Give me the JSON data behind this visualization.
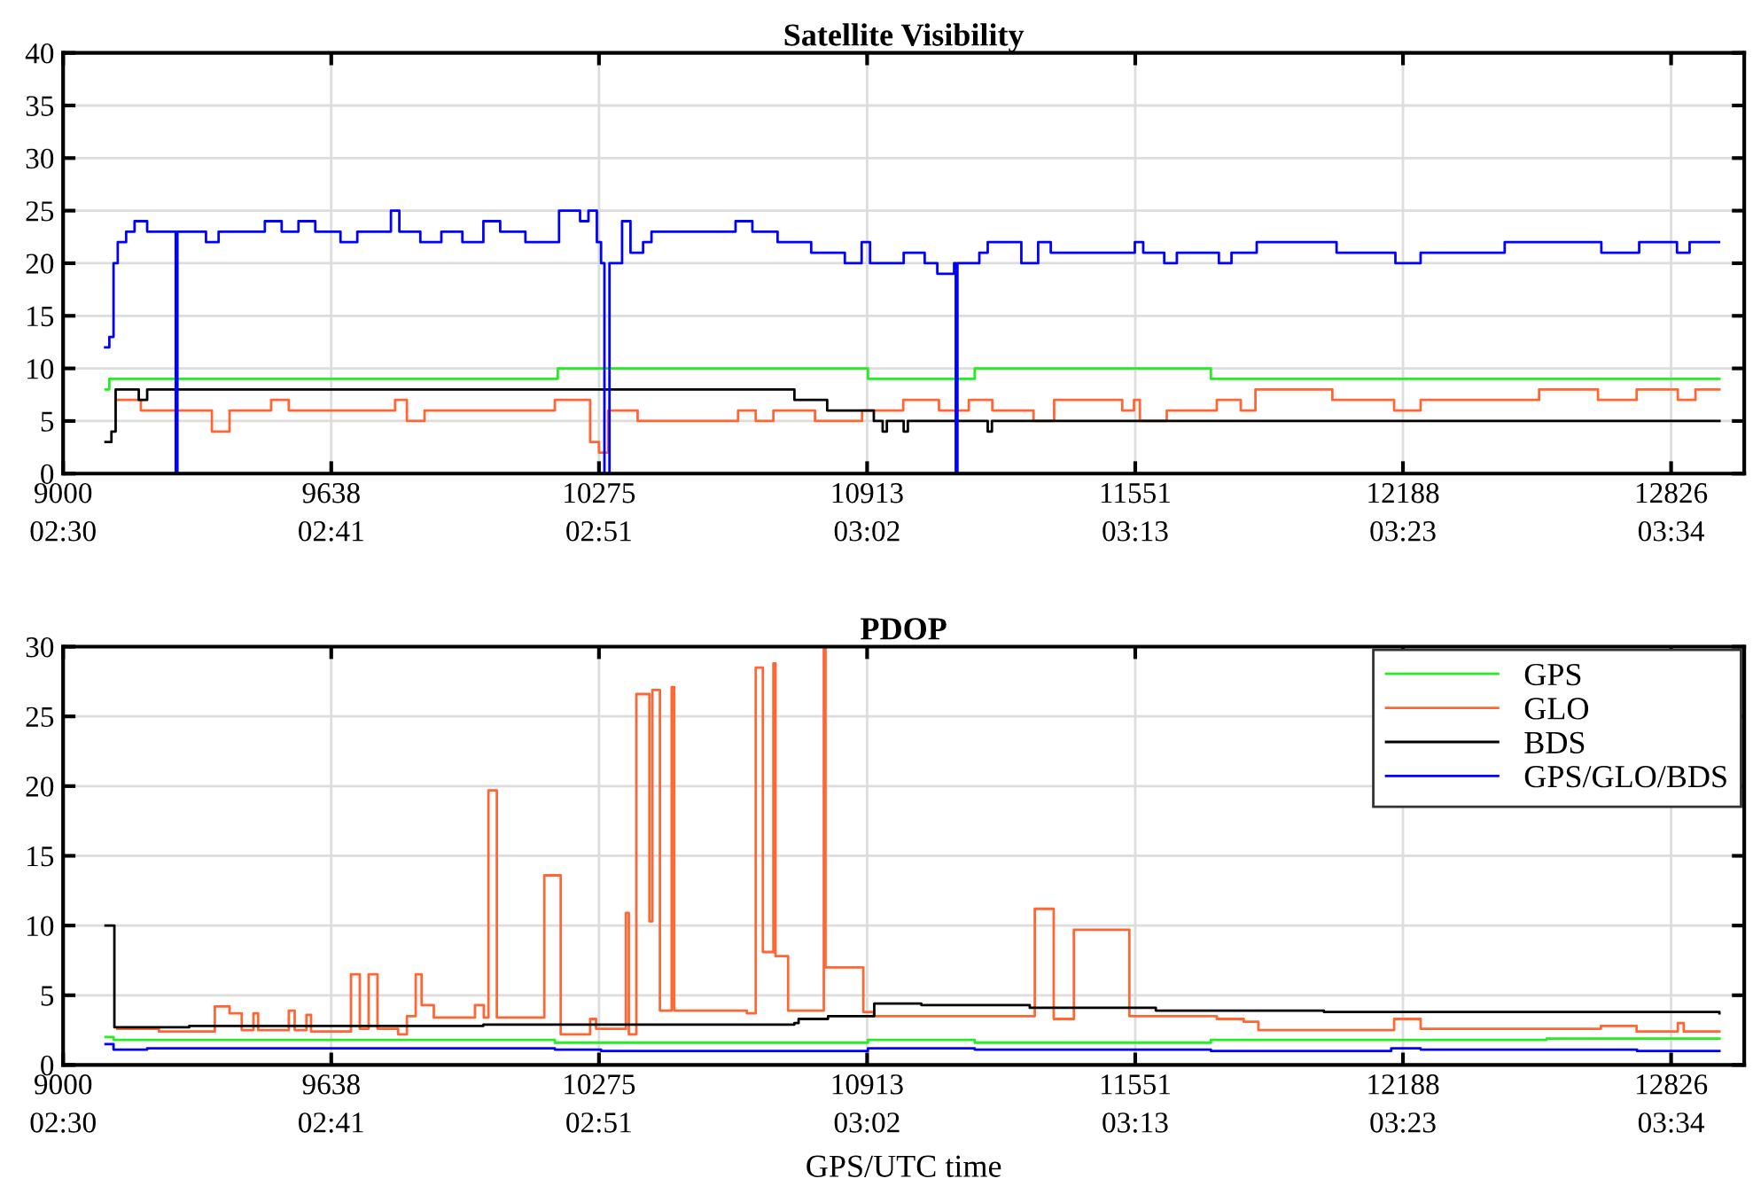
{
  "chart_data": [
    {
      "type": "step",
      "title": "Satellite Visibility",
      "xlim": [
        9000,
        13000
      ],
      "xticks": [
        9000,
        9638,
        10275,
        10913,
        11551,
        12188,
        12826
      ],
      "x2lim": [
        9000,
        13000
      ],
      "x2ticks": [
        {
          "value": 9000,
          "label": "02:30"
        },
        {
          "value": 9638,
          "label": "02:41"
        },
        {
          "value": 10275,
          "label": "02:51"
        },
        {
          "value": 10913,
          "label": "03:02"
        },
        {
          "value": 11551,
          "label": "03:13"
        },
        {
          "value": 12188,
          "label": "03:23"
        },
        {
          "value": 12826,
          "label": "03:34"
        }
      ],
      "ylim": [
        0,
        40
      ],
      "yticks": [
        0,
        5,
        10,
        15,
        20,
        25,
        30,
        35,
        40
      ],
      "grid": true,
      "legend": false,
      "series": [
        {
          "color": "#22ee22",
          "x": [
            9101,
            9110,
            10177,
            10915,
            11169,
            11731,
            12941
          ],
          "values": [
            8,
            9,
            10,
            9,
            10,
            9,
            9
          ]
        },
        {
          "color": "#ff6633",
          "x": [
            9129,
            9185,
            9354,
            9396,
            9495,
            9537,
            9790,
            9818,
            9860,
            10170,
            10254,
            10275,
            10297,
            10367,
            10606,
            10648,
            10690,
            10789,
            10901,
            10999,
            11084,
            11155,
            11211,
            11309,
            11358,
            11520,
            11548,
            11562,
            11626,
            11745,
            11802,
            11837,
            12020,
            12167,
            12230,
            12512,
            12652,
            12744,
            12842,
            12884,
            12941
          ],
          "values": [
            7,
            6,
            4,
            6,
            7,
            6,
            7,
            5,
            6,
            7,
            3,
            2,
            6,
            5,
            6,
            5,
            6,
            5,
            6,
            7,
            6,
            7,
            6,
            5,
            7,
            6,
            7,
            5,
            6,
            7,
            6,
            8,
            7,
            6,
            7,
            8,
            7,
            8,
            7,
            8,
            8
          ]
        },
        {
          "color": "#000000",
          "x": [
            9101,
            9115,
            9125,
            9180,
            9200,
            10740,
            10818,
            10929,
            10950,
            10960,
            11000,
            11010,
            11200,
            11210,
            12941
          ],
          "values": [
            3,
            4,
            8,
            7,
            8,
            7,
            6,
            5,
            4,
            5,
            4,
            5,
            4,
            5,
            5
          ]
        },
        {
          "color": "#0000ff",
          "x": [
            9100,
            9110,
            9120,
            9130,
            9150,
            9170,
            9200,
            9268,
            9272,
            9340,
            9370,
            9480,
            9520,
            9560,
            9600,
            9660,
            9700,
            9780,
            9800,
            9850,
            9900,
            9950,
            10000,
            10040,
            10100,
            10180,
            10230,
            10250,
            10270,
            10280,
            10288,
            10300,
            10330,
            10350,
            10380,
            10400,
            10600,
            10640,
            10700,
            10780,
            10860,
            10900,
            10920,
            11000,
            11050,
            11080,
            11120,
            11124,
            11128,
            11180,
            11200,
            11280,
            11320,
            11350,
            11550,
            11570,
            11620,
            11650,
            11750,
            11780,
            11840,
            12030,
            12170,
            12230,
            12430,
            12660,
            12750,
            12840,
            12870,
            12940
          ],
          "values": [
            12,
            13,
            20,
            22,
            23,
            24,
            23,
            0,
            23,
            22,
            23,
            24,
            23,
            24,
            23,
            22,
            23,
            25,
            23,
            22,
            23,
            22,
            24,
            23,
            22,
            25,
            24,
            25,
            22,
            20,
            0,
            20,
            24,
            21,
            22,
            23,
            24,
            23,
            22,
            21,
            20,
            22,
            20,
            21,
            20,
            19,
            20,
            0,
            20,
            21,
            22,
            20,
            22,
            21,
            22,
            21,
            20,
            21,
            20,
            21,
            22,
            21,
            20,
            21,
            22,
            21,
            22,
            21,
            22,
            22
          ]
        }
      ]
    },
    {
      "type": "step",
      "title": "PDOP",
      "xlabel": "GPS/UTC time",
      "xlim": [
        9000,
        13000
      ],
      "xticks": [
        9000,
        9638,
        10275,
        10913,
        11551,
        12188,
        12826
      ],
      "x2lim": [
        9000,
        13000
      ],
      "x2ticks": [
        {
          "value": 9000,
          "label": "02:30"
        },
        {
          "value": 9638,
          "label": "02:41"
        },
        {
          "value": 10275,
          "label": "02:51"
        },
        {
          "value": 10913,
          "label": "03:02"
        },
        {
          "value": 11551,
          "label": "03:13"
        },
        {
          "value": 12188,
          "label": "03:23"
        },
        {
          "value": 12826,
          "label": "03:34"
        }
      ],
      "ylim": [
        0,
        30
      ],
      "yticks": [
        0,
        5,
        10,
        15,
        20,
        25,
        30
      ],
      "grid": true,
      "legend": "top right",
      "series": [
        {
          "name": "GPS",
          "color": "#22ee22",
          "x": [
            9101,
            9120,
            10170,
            10915,
            11169,
            11731,
            12530,
            12941
          ],
          "values": [
            2.0,
            1.8,
            1.6,
            1.8,
            1.6,
            1.8,
            1.9,
            1.9
          ]
        },
        {
          "name": "GLO",
          "color": "#ff6633",
          "x": [
            9129,
            9228,
            9361,
            9396,
            9425,
            9453,
            9464,
            9537,
            9551,
            9579,
            9590,
            9685,
            9706,
            9727,
            9748,
            9797,
            9818,
            9839,
            9853,
            9882,
            9980,
            10001,
            10012,
            10032,
            10145,
            10184,
            10254,
            10268,
            10339,
            10346,
            10364,
            10395,
            10402,
            10420,
            10448,
            10454,
            10627,
            10648,
            10665,
            10690,
            10695,
            10725,
            10810,
            10814,
            10904,
            10929,
            11312,
            11357,
            11405,
            11537,
            11745,
            11809,
            11844,
            12167,
            12230,
            12659,
            12744,
            12842,
            12856,
            12941
          ],
          "values": [
            2.6,
            2.4,
            4.2,
            3.7,
            2.5,
            3.7,
            2.5,
            3.9,
            2.5,
            3.6,
            2.4,
            6.5,
            2.6,
            6.5,
            2.6,
            2.2,
            3.5,
            6.5,
            4.3,
            3.4,
            4.3,
            3.4,
            19.7,
            3.4,
            13.6,
            2.2,
            3.3,
            2.6,
            10.9,
            2.2,
            26.6,
            10.3,
            26.9,
            3.9,
            27.1,
            3.9,
            3.7,
            28.5,
            8.1,
            28.8,
            7.8,
            3.9,
            29.9,
            7.0,
            3.8,
            3.5,
            11.2,
            3.3,
            9.7,
            3.5,
            3.3,
            3.1,
            2.5,
            3.3,
            2.6,
            2.8,
            2.4,
            3.0,
            2.4,
            2.4
          ]
        },
        {
          "name": "BDS",
          "color": "#000000",
          "x": [
            9101,
            9122,
            9300,
            10000,
            10740,
            10750,
            10820,
            10930,
            11042,
            11300,
            11600,
            12000,
            12941
          ],
          "values": [
            10,
            2.7,
            2.8,
            2.9,
            3.0,
            3.3,
            3.5,
            4.4,
            4.3,
            4.1,
            3.9,
            3.8,
            3.7
          ]
        },
        {
          "name": "GPS/GLO/BDS",
          "color": "#0000ff",
          "x": [
            9101,
            9120,
            9200,
            10170,
            10280,
            10915,
            11169,
            11731,
            12160,
            12230,
            12745,
            12941
          ],
          "values": [
            1.5,
            1.1,
            1.2,
            1.1,
            1.0,
            1.2,
            1.1,
            1.0,
            1.2,
            1.1,
            1.0,
            1.0
          ]
        }
      ]
    }
  ]
}
